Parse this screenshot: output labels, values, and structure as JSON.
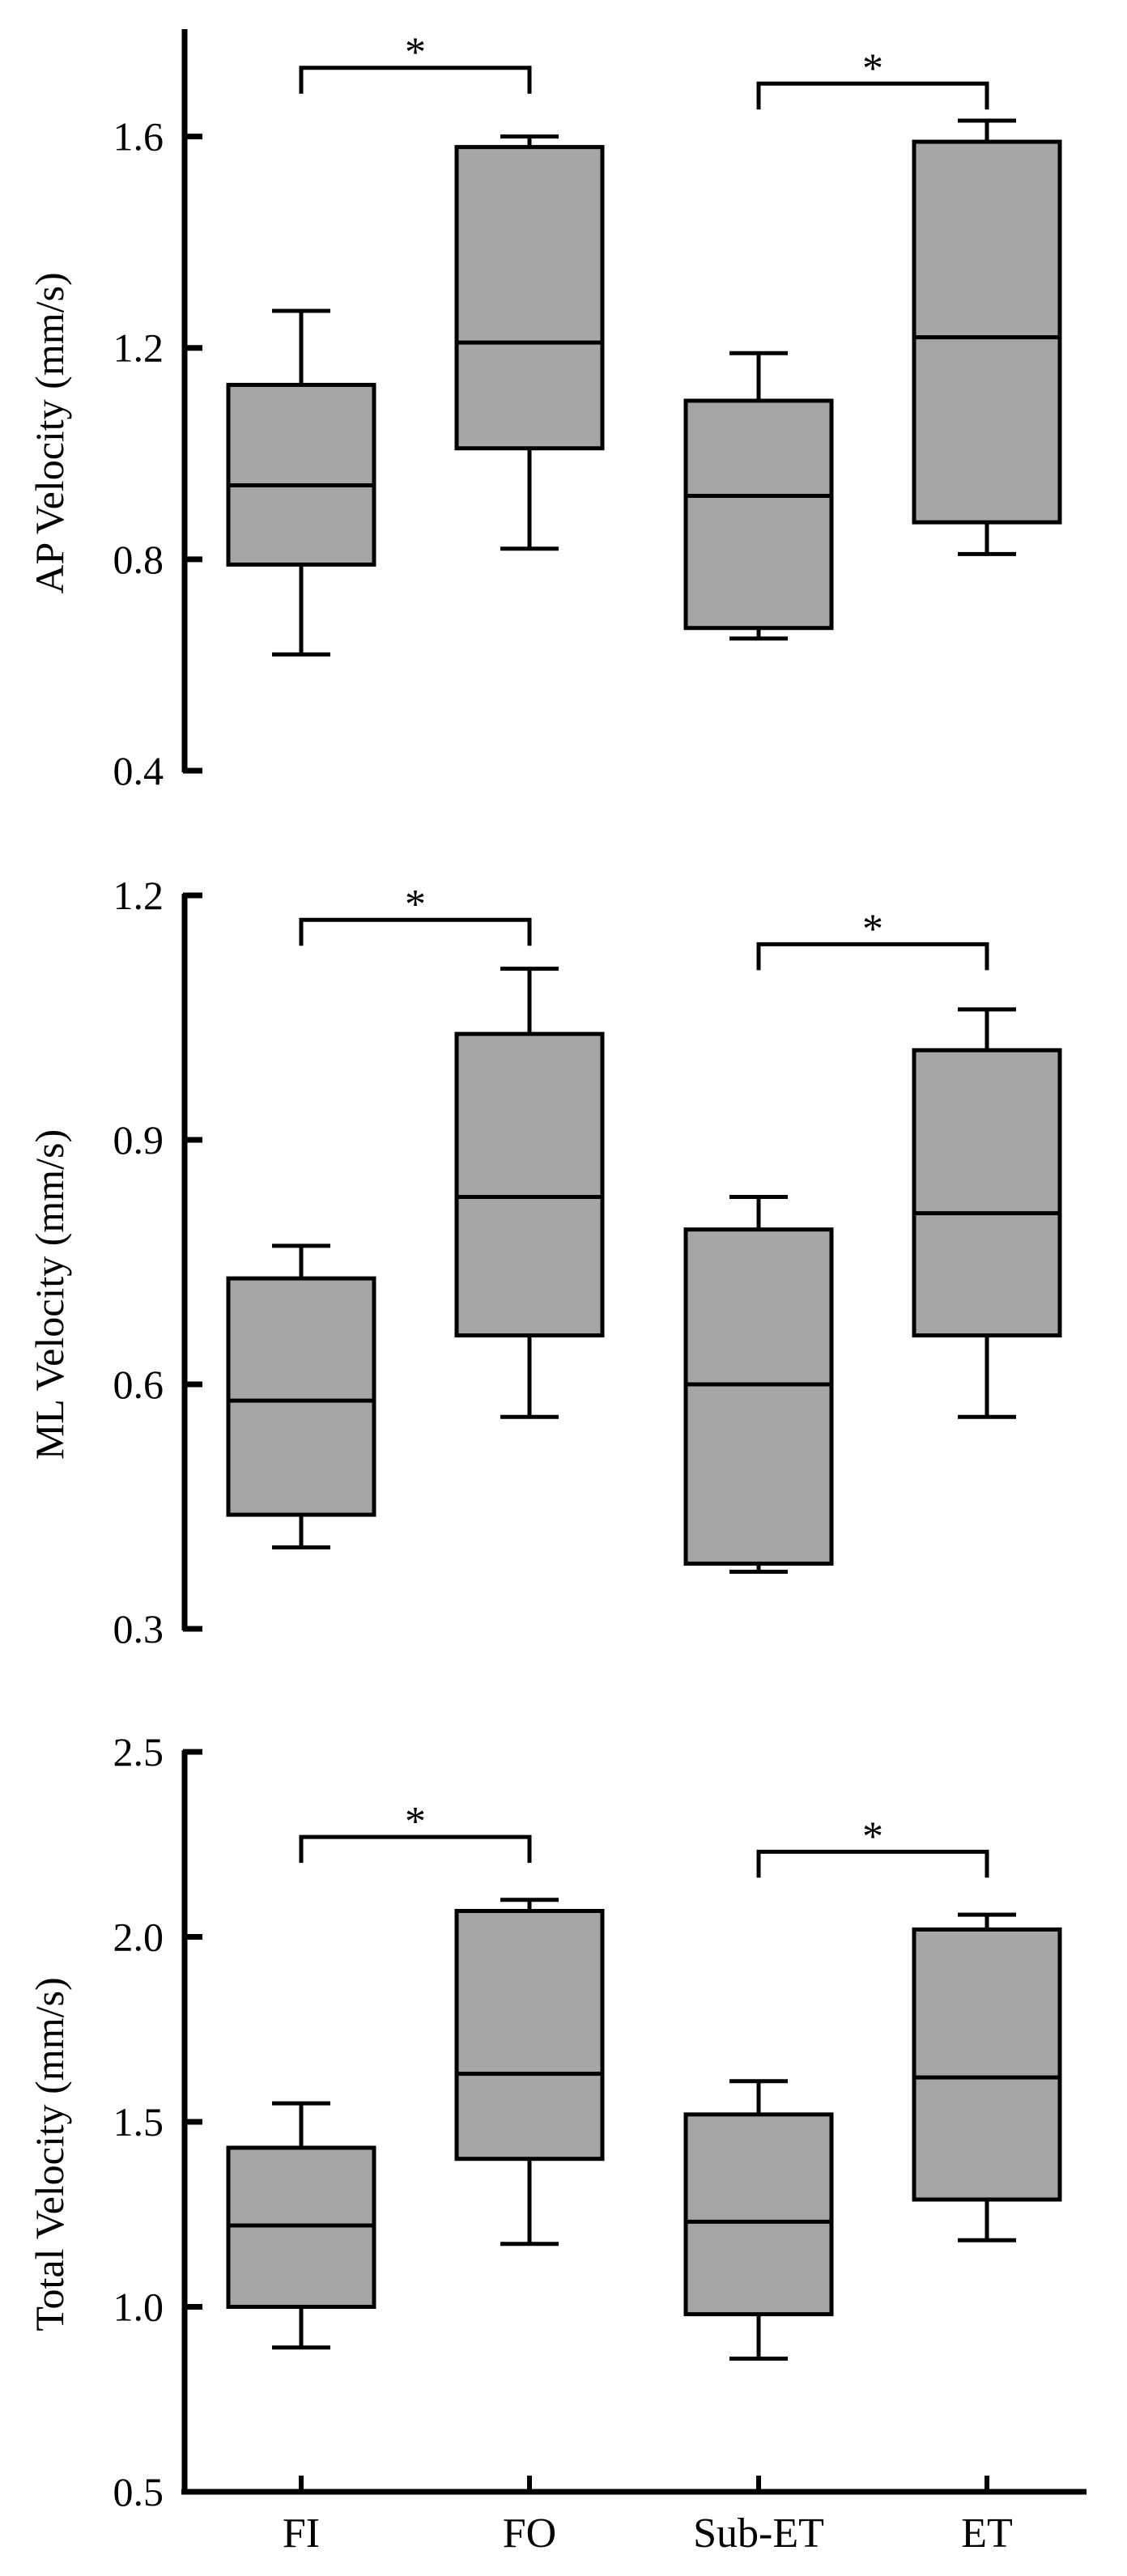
{
  "colors": {
    "box_fill": "#a6a6a6",
    "stroke": "#000000",
    "background": "#ffffff"
  },
  "chart_data": [
    {
      "type": "box",
      "title": "",
      "xlabel": "",
      "ylabel": "AP Velocity (mm/s)",
      "ylim": [
        0.4,
        1.8
      ],
      "yticks": [
        0.4,
        0.8,
        1.2,
        1.6
      ],
      "ytick_labels": [
        "0.4",
        "0.8",
        "1.2",
        "1.6"
      ],
      "categories": [
        "FI",
        "FO",
        "Sub-ET",
        "ET"
      ],
      "boxes": [
        {
          "category": "FI",
          "whisker_low": 0.62,
          "q1": 0.79,
          "median": 0.94,
          "q3": 1.13,
          "whisker_high": 1.27
        },
        {
          "category": "FO",
          "whisker_low": 0.82,
          "q1": 1.01,
          "median": 1.21,
          "q3": 1.58,
          "whisker_high": 1.6
        },
        {
          "category": "Sub-ET",
          "whisker_low": 0.65,
          "q1": 0.67,
          "median": 0.92,
          "q3": 1.1,
          "whisker_high": 1.19
        },
        {
          "category": "ET",
          "whisker_low": 0.81,
          "q1": 0.87,
          "median": 1.22,
          "q3": 1.59,
          "whisker_high": 1.63
        }
      ],
      "significance": [
        {
          "from": "FI",
          "to": "FO",
          "level": 1.73,
          "label": "*"
        },
        {
          "from": "Sub-ET",
          "to": "ET",
          "level": 1.7,
          "label": "*"
        }
      ]
    },
    {
      "type": "box",
      "title": "",
      "xlabel": "",
      "ylabel": "ML Velocity (mm/s)",
      "ylim": [
        0.3,
        1.2
      ],
      "yticks": [
        0.3,
        0.6,
        0.9,
        1.2
      ],
      "ytick_labels": [
        "0.3",
        "0.6",
        "0.9",
        "1.2"
      ],
      "categories": [
        "FI",
        "FO",
        "Sub-ET",
        "ET"
      ],
      "boxes": [
        {
          "category": "FI",
          "whisker_low": 0.4,
          "q1": 0.44,
          "median": 0.58,
          "q3": 0.73,
          "whisker_high": 0.77
        },
        {
          "category": "FO",
          "whisker_low": 0.56,
          "q1": 0.66,
          "median": 0.83,
          "q3": 1.03,
          "whisker_high": 1.11
        },
        {
          "category": "Sub-ET",
          "whisker_low": 0.37,
          "q1": 0.38,
          "median": 0.6,
          "q3": 0.79,
          "whisker_high": 0.83
        },
        {
          "category": "ET",
          "whisker_low": 0.56,
          "q1": 0.66,
          "median": 0.81,
          "q3": 1.01,
          "whisker_high": 1.06
        }
      ],
      "significance": [
        {
          "from": "FI",
          "to": "FO",
          "level": 1.17,
          "label": "*"
        },
        {
          "from": "Sub-ET",
          "to": "ET",
          "level": 1.14,
          "label": "*"
        }
      ]
    },
    {
      "type": "box",
      "title": "",
      "xlabel": "",
      "ylabel": "Total Velocity (mm/s)",
      "ylim": [
        0.5,
        2.5
      ],
      "yticks": [
        0.5,
        1.0,
        1.5,
        2.0,
        2.5
      ],
      "ytick_labels": [
        "0.5",
        "1.0",
        "1.5",
        "2.0",
        "2.5"
      ],
      "categories": [
        "FI",
        "FO",
        "Sub-ET",
        "ET"
      ],
      "boxes": [
        {
          "category": "FI",
          "whisker_low": 0.89,
          "q1": 1.0,
          "median": 1.22,
          "q3": 1.43,
          "whisker_high": 1.55
        },
        {
          "category": "FO",
          "whisker_low": 1.17,
          "q1": 1.4,
          "median": 1.63,
          "q3": 2.07,
          "whisker_high": 2.1
        },
        {
          "category": "Sub-ET",
          "whisker_low": 0.86,
          "q1": 0.98,
          "median": 1.23,
          "q3": 1.52,
          "whisker_high": 1.61
        },
        {
          "category": "ET",
          "whisker_low": 1.18,
          "q1": 1.29,
          "median": 1.62,
          "q3": 2.02,
          "whisker_high": 2.06
        }
      ],
      "significance": [
        {
          "from": "FI",
          "to": "FO",
          "level": 2.27,
          "label": "*"
        },
        {
          "from": "Sub-ET",
          "to": "ET",
          "level": 2.23,
          "label": "*"
        }
      ]
    }
  ]
}
